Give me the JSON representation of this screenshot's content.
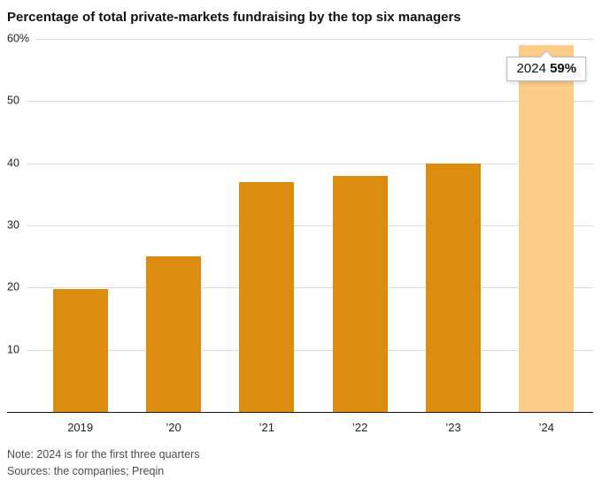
{
  "title": "Percentage of total private-markets fundraising by the top six managers",
  "notes": {
    "note": "Note: 2024 is for the first three quarters",
    "sources": "Sources: the companies; Preqin"
  },
  "tooltip": {
    "year": "2024",
    "value": "59%"
  },
  "colors": {
    "bar": "#DC8C0F",
    "bar_highlight": "#FBCD89",
    "grid": "#DCDCDC",
    "axis": "#1A1A1A"
  },
  "chart_data": {
    "type": "bar",
    "categories": [
      "2019",
      "’20",
      "’21",
      "’22",
      "’23",
      "’24"
    ],
    "values": [
      19.7,
      25,
      37,
      38,
      40,
      59
    ],
    "highlight_index": 5,
    "highlight_annotation": {
      "year": "2024",
      "value_pct": 59
    },
    "title": "Percentage of total private-markets fundraising by the top six managers",
    "xlabel": "",
    "ylabel": "",
    "ylim": [
      0,
      60
    ],
    "yticks": [
      {
        "value": 60,
        "label": "60%"
      },
      {
        "value": 50,
        "label": "50"
      },
      {
        "value": 40,
        "label": "40"
      },
      {
        "value": 30,
        "label": "30"
      },
      {
        "value": 20,
        "label": "20"
      },
      {
        "value": 10,
        "label": "10"
      }
    ],
    "grid": true,
    "legend": false
  }
}
